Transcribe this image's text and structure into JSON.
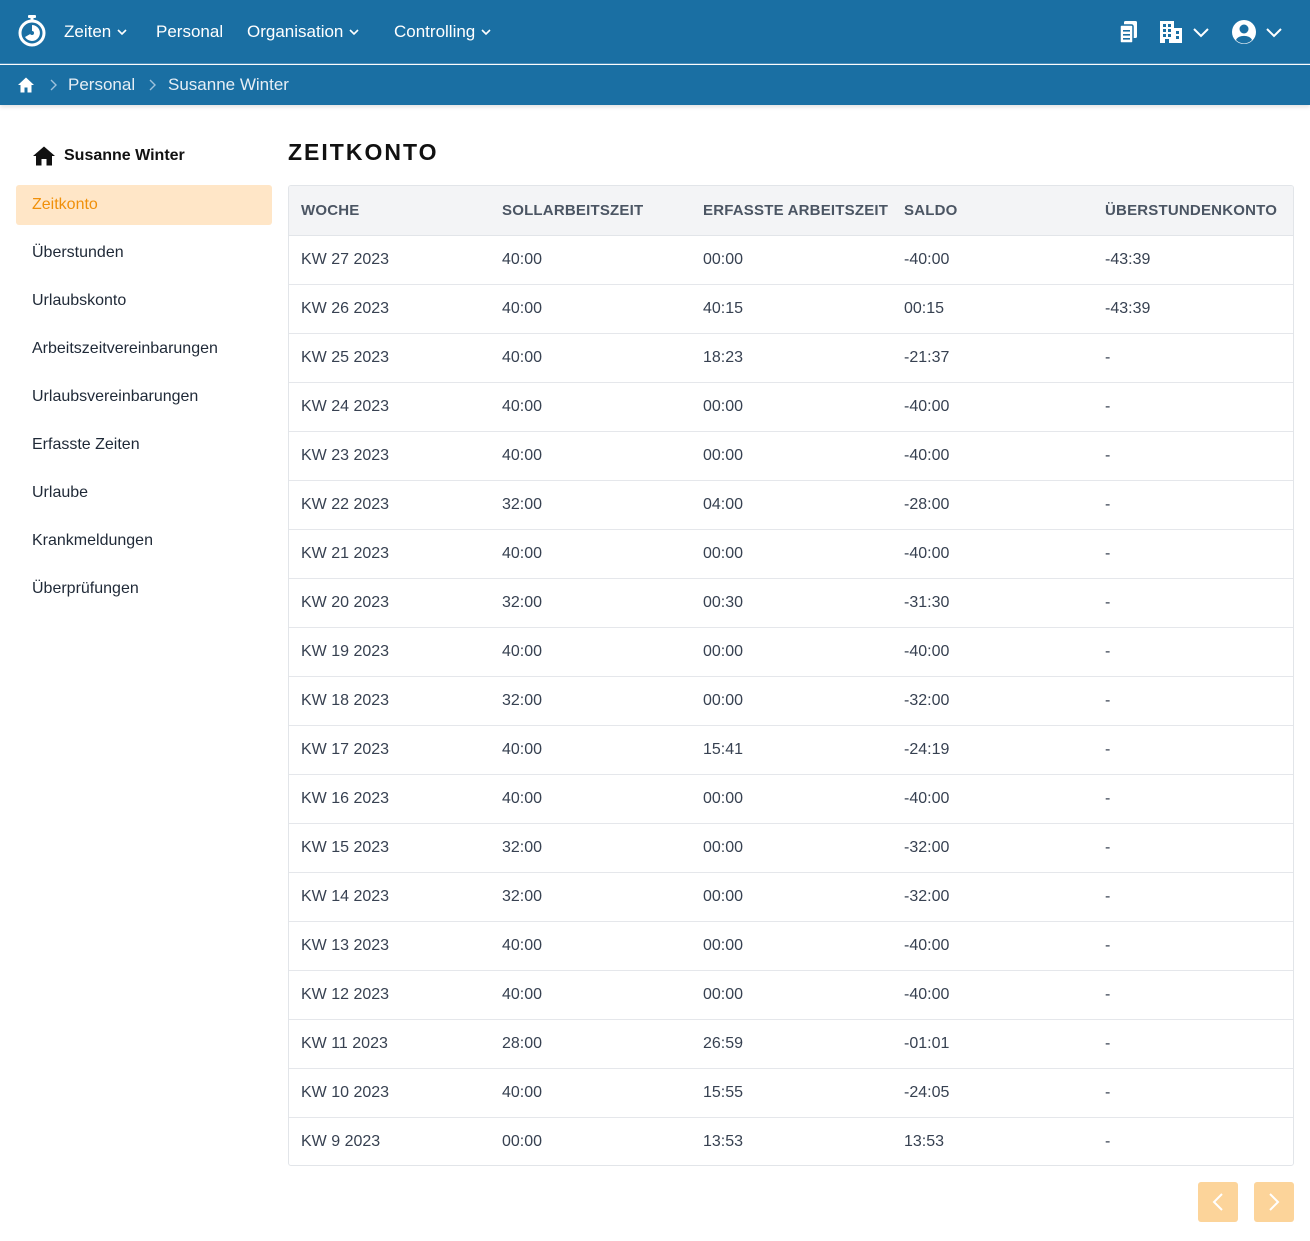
{
  "nav": {
    "items": [
      {
        "label": "Zeiten"
      },
      {
        "label": "Personal"
      },
      {
        "label": "Organisation"
      },
      {
        "label": "Controlling"
      }
    ]
  },
  "breadcrumb": [
    "Personal",
    "Susanne Winter"
  ],
  "sidebar": {
    "heading": "Susanne Winter",
    "items": [
      {
        "label": "Zeitkonto",
        "active": true
      },
      {
        "label": "Überstunden"
      },
      {
        "label": "Urlaubskonto"
      },
      {
        "label": "Arbeitszeitvereinbarungen"
      },
      {
        "label": "Urlaubsvereinbarungen"
      },
      {
        "label": "Erfasste Zeiten"
      },
      {
        "label": "Urlaube"
      },
      {
        "label": "Krankmeldungen"
      },
      {
        "label": "Überprüfungen"
      }
    ]
  },
  "main": {
    "title": "ZEITKONTO",
    "table": {
      "headers": [
        "WOCHE",
        "SOLLARBEITSZEIT",
        "ERFASSTE ARBEITSZEIT",
        "SALDO",
        "ÜBERSTUNDENKONTO"
      ],
      "rows": [
        [
          "KW 27 2023",
          "40:00",
          "00:00",
          "-40:00",
          "-43:39"
        ],
        [
          "KW 26 2023",
          "40:00",
          "40:15",
          "00:15",
          "-43:39"
        ],
        [
          "KW 25 2023",
          "40:00",
          "18:23",
          "-21:37",
          "-"
        ],
        [
          "KW 24 2023",
          "40:00",
          "00:00",
          "-40:00",
          "-"
        ],
        [
          "KW 23 2023",
          "40:00",
          "00:00",
          "-40:00",
          "-"
        ],
        [
          "KW 22 2023",
          "32:00",
          "04:00",
          "-28:00",
          "-"
        ],
        [
          "KW 21 2023",
          "40:00",
          "00:00",
          "-40:00",
          "-"
        ],
        [
          "KW 20 2023",
          "32:00",
          "00:30",
          "-31:30",
          "-"
        ],
        [
          "KW 19 2023",
          "40:00",
          "00:00",
          "-40:00",
          "-"
        ],
        [
          "KW 18 2023",
          "32:00",
          "00:00",
          "-32:00",
          "-"
        ],
        [
          "KW 17 2023",
          "40:00",
          "15:41",
          "-24:19",
          "-"
        ],
        [
          "KW 16 2023",
          "40:00",
          "00:00",
          "-40:00",
          "-"
        ],
        [
          "KW 15 2023",
          "32:00",
          "00:00",
          "-32:00",
          "-"
        ],
        [
          "KW 14 2023",
          "32:00",
          "00:00",
          "-32:00",
          "-"
        ],
        [
          "KW 13 2023",
          "40:00",
          "00:00",
          "-40:00",
          "-"
        ],
        [
          "KW 12 2023",
          "40:00",
          "00:00",
          "-40:00",
          "-"
        ],
        [
          "KW 11 2023",
          "28:00",
          "26:59",
          "-01:01",
          "-"
        ],
        [
          "KW 10 2023",
          "40:00",
          "15:55",
          "-24:05",
          "-"
        ],
        [
          "KW 9 2023",
          "00:00",
          "13:53",
          "13:53",
          "-"
        ]
      ]
    }
  },
  "colors": {
    "header_bg": "#1a6fa3",
    "active_bg": "#ffe6c7",
    "active_text": "#f0900a",
    "pager_bg": "#fcd49a"
  },
  "icons": {
    "logo": "stopwatch-logo-icon",
    "docs": "documents-icon",
    "building": "building-icon",
    "user": "user-circle-icon",
    "home": "home-icon",
    "prev": "chevron-left-icon",
    "next": "chevron-right-icon"
  }
}
